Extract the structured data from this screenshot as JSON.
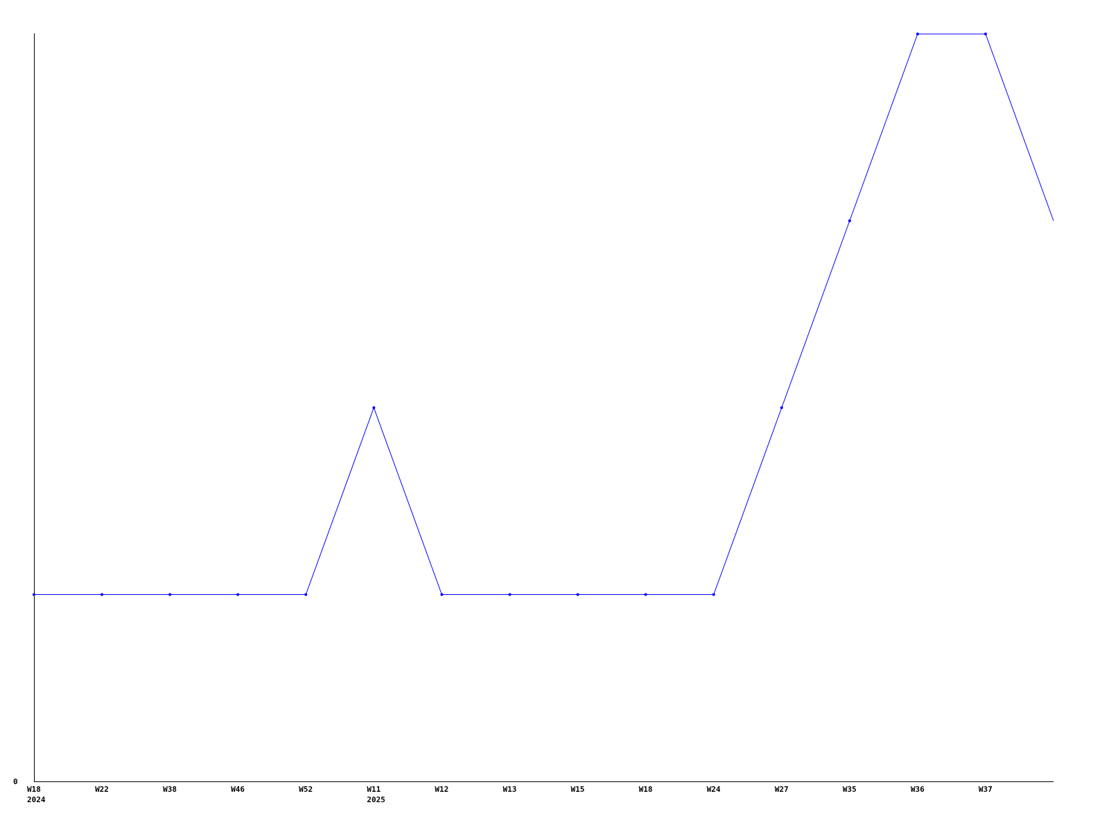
{
  "chart_data": {
    "type": "line",
    "title": "",
    "xlabel": "",
    "ylabel": "",
    "categories": [
      "W18",
      "W22",
      "W38",
      "W46",
      "W52",
      "W11",
      "W12",
      "W13",
      "W15",
      "W18",
      "W24",
      "W27",
      "W35",
      "W36",
      "W37",
      ""
    ],
    "year_labels": [
      {
        "index": 0,
        "label": "2024"
      },
      {
        "index": 5,
        "label": "2025"
      }
    ],
    "series": [
      {
        "values": [
          1,
          1,
          1,
          1,
          1,
          2,
          1,
          1,
          1,
          1,
          1,
          2,
          3,
          4,
          4,
          3
        ]
      }
    ],
    "y_tick_labels": [
      "0"
    ],
    "ylim": [
      0,
      4
    ],
    "grid": false,
    "line_color": "#0000ff",
    "axis_color": "#000000"
  }
}
